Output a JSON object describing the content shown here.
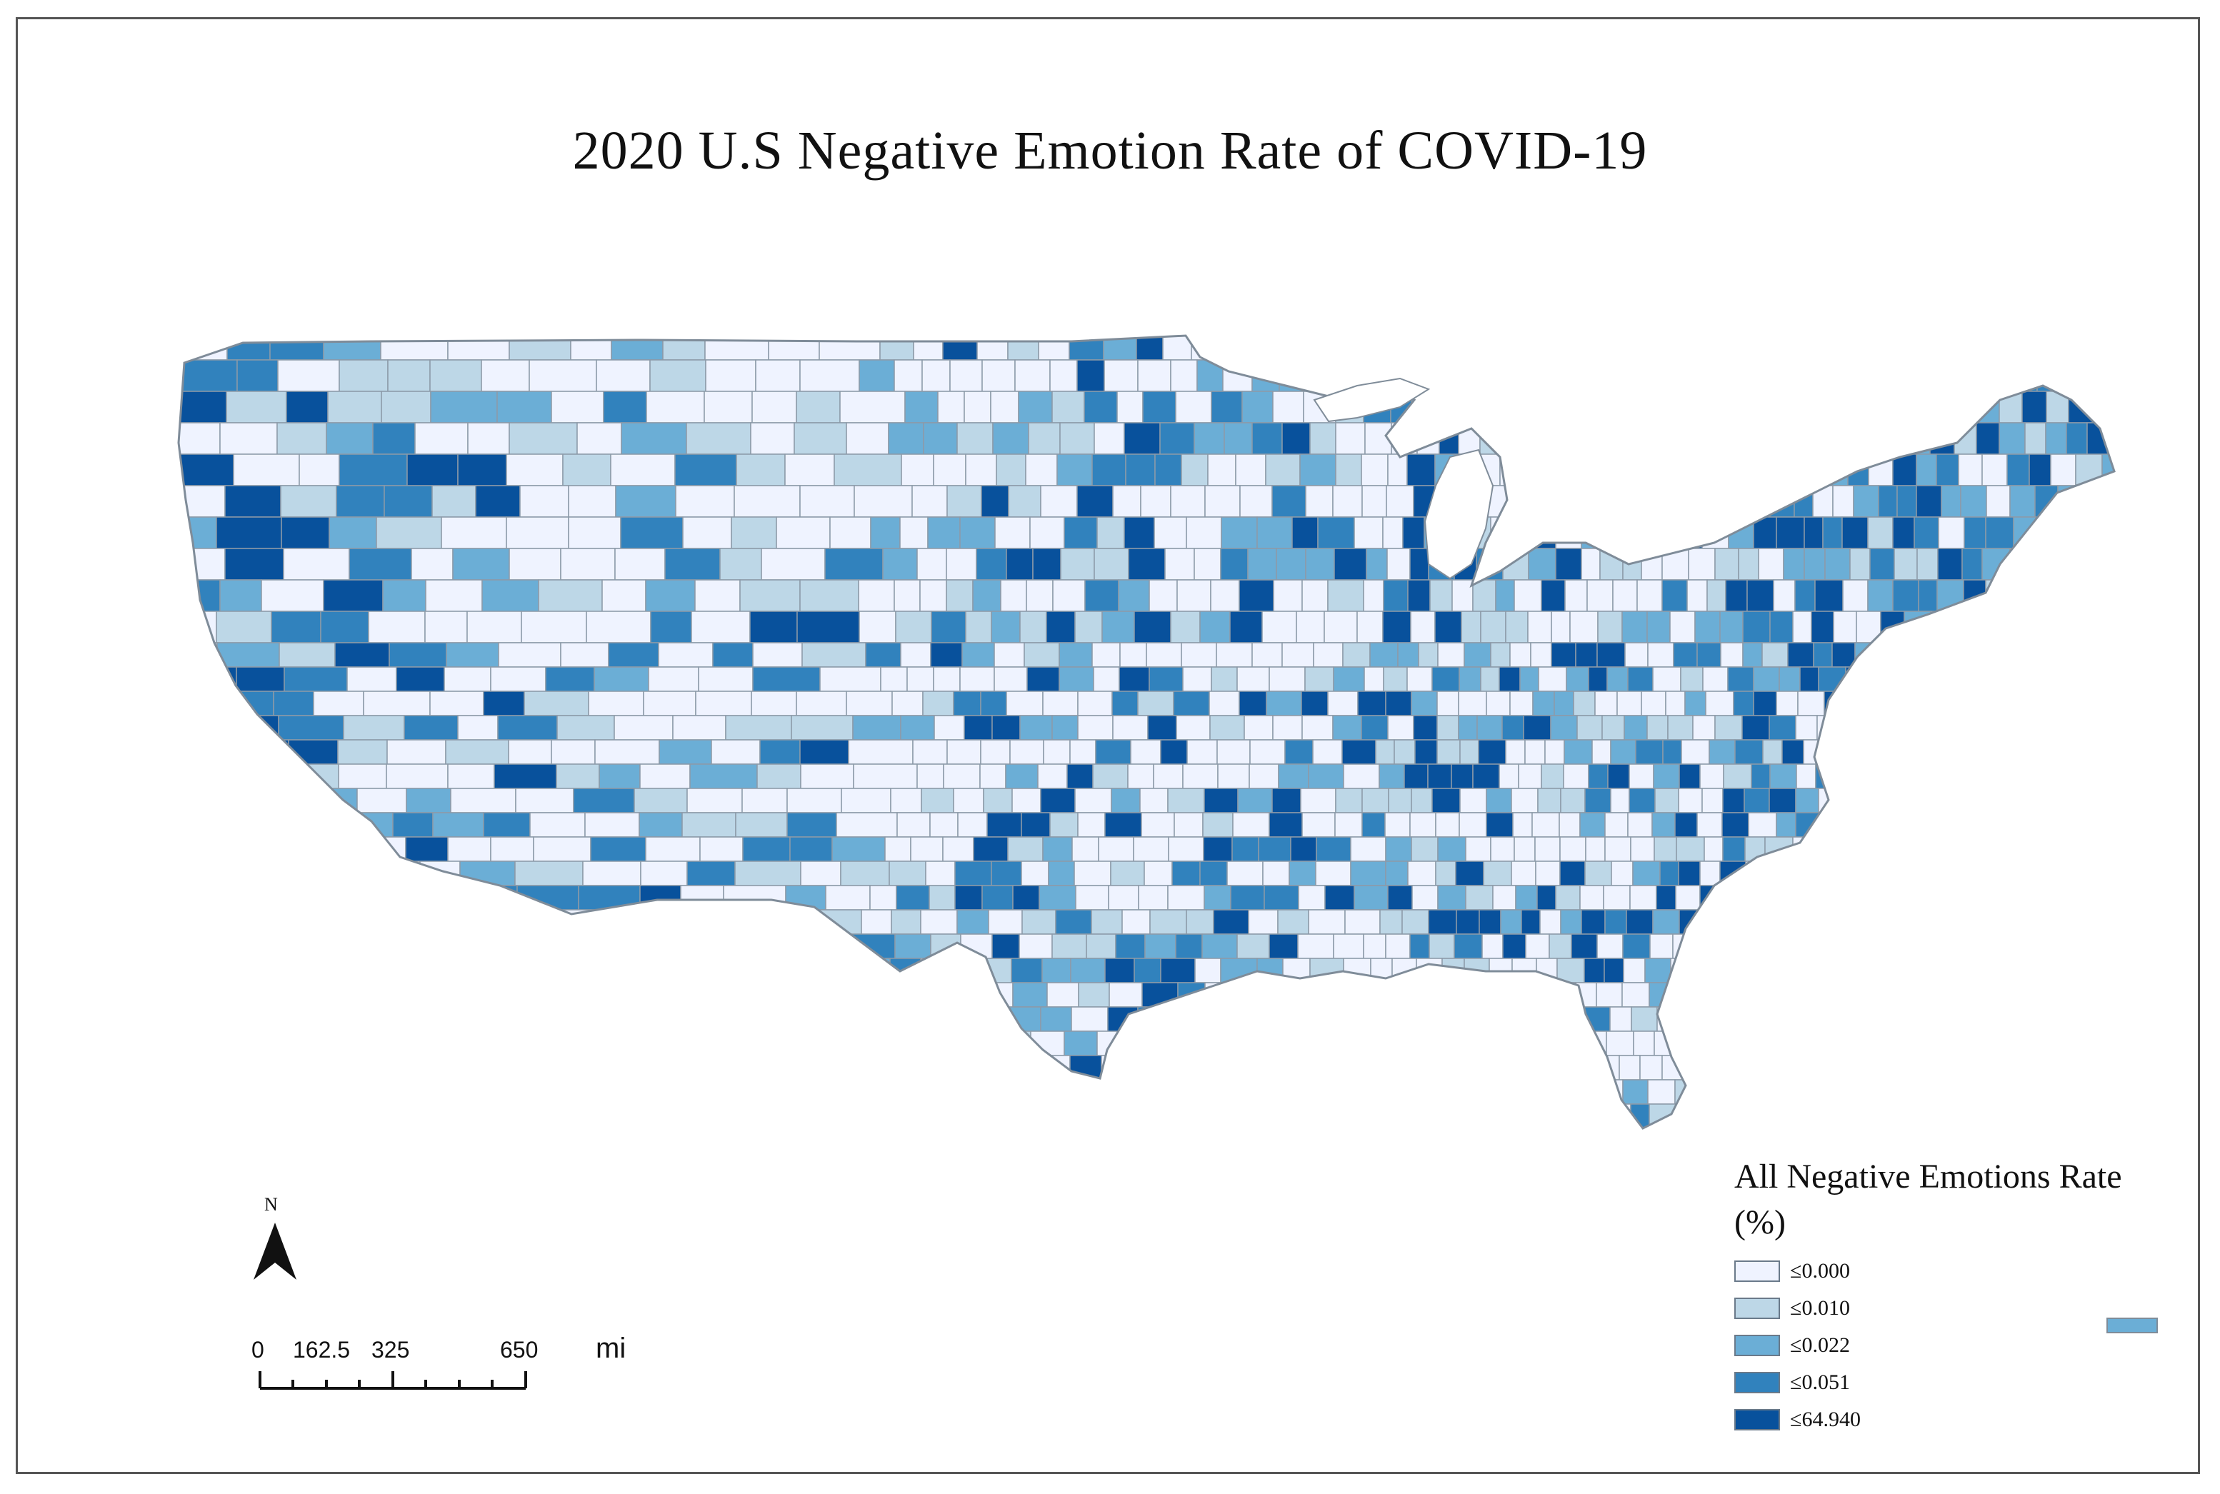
{
  "title": "2020 U.S Negative Emotion Rate of COVID-19",
  "legend": {
    "title": "All Negative Emotions Rate (%)",
    "classes": [
      {
        "label": "≤0.000",
        "color": "#eff3ff"
      },
      {
        "label": "≤0.010",
        "color": "#bdd7e7"
      },
      {
        "label": "≤0.022",
        "color": "#6baed6"
      },
      {
        "label": "≤0.051",
        "color": "#3182bd"
      },
      {
        "label": "≤64.940",
        "color": "#08519c"
      }
    ]
  },
  "north_arrow": {
    "label": "N"
  },
  "scale_bar": {
    "ticks": [
      "0",
      "162.5",
      "325",
      "650"
    ],
    "unit": "mi"
  },
  "colors": {
    "border": "#8c9aa8",
    "frame": "#555555"
  }
}
